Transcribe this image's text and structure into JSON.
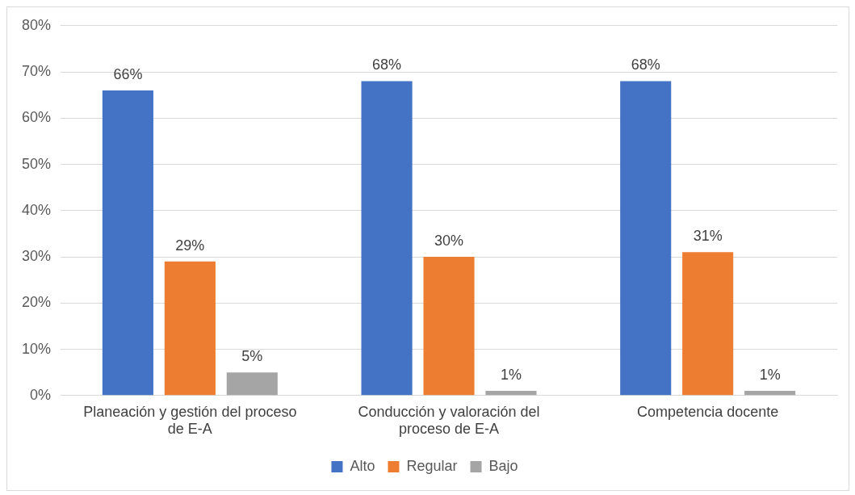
{
  "chart_data": {
    "type": "bar",
    "categories": [
      "Planeación y gestión del proceso de E-A",
      "Conducción y valoración del proceso de E-A",
      "Competencia docente"
    ],
    "series": [
      {
        "name": "Alto",
        "color": "#4472c4",
        "values": [
          66,
          68,
          68
        ],
        "value_labels": [
          "66%",
          "68%",
          "68%"
        ]
      },
      {
        "name": "Regular",
        "color": "#ed7d31",
        "values": [
          29,
          30,
          31
        ],
        "value_labels": [
          "29%",
          "30%",
          "31%"
        ]
      },
      {
        "name": "Bajo",
        "color": "#a5a5a5",
        "values": [
          5,
          1,
          1
        ],
        "value_labels": [
          "5%",
          "1%",
          "1%"
        ]
      }
    ],
    "ylim": [
      0,
      80
    ],
    "yticks": [
      {
        "value": 0,
        "label": "0%"
      },
      {
        "value": 10,
        "label": "10%"
      },
      {
        "value": 20,
        "label": "20%"
      },
      {
        "value": 30,
        "label": "30%"
      },
      {
        "value": 40,
        "label": "40%"
      },
      {
        "value": 50,
        "label": "50%"
      },
      {
        "value": 60,
        "label": "60%"
      },
      {
        "value": 70,
        "label": "70%"
      },
      {
        "value": 80,
        "label": "80%"
      }
    ],
    "grid": "y",
    "legend": "bottom"
  }
}
